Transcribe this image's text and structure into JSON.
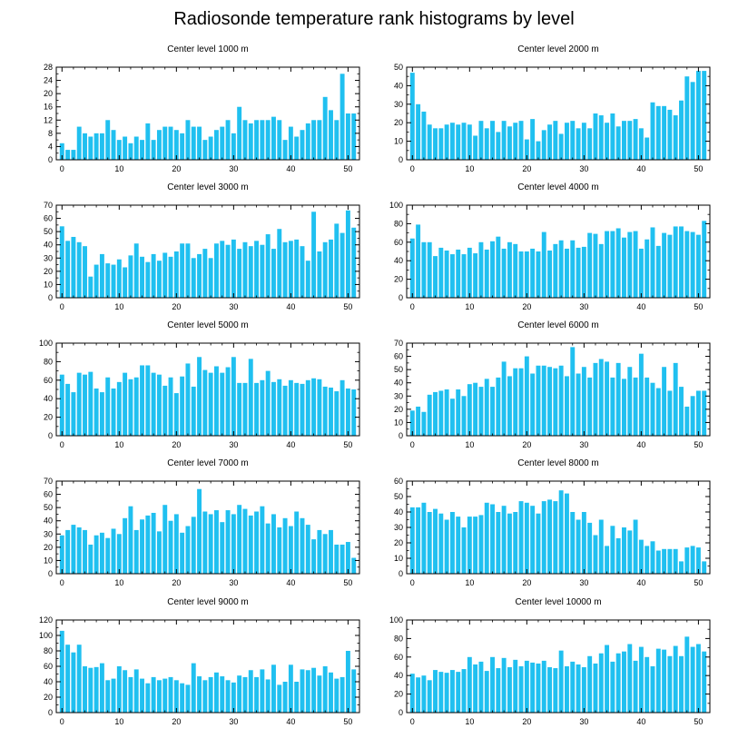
{
  "page_title": "Radiosonde temperature rank histograms by level",
  "bar_color": "#20c0f0",
  "chart_data": [
    {
      "type": "bar",
      "title": "Center level 1000 m",
      "xlim": [
        -1,
        52
      ],
      "ylim": [
        0,
        28
      ],
      "xticks": [
        0,
        10,
        20,
        30,
        40,
        50
      ],
      "yticks": [
        0,
        4,
        8,
        12,
        16,
        20,
        24,
        28
      ],
      "values": [
        5,
        3,
        3,
        10,
        8,
        7,
        8,
        8,
        12,
        9,
        6,
        7,
        5,
        7,
        6,
        11,
        6,
        9,
        10,
        10,
        9,
        8,
        12,
        10,
        10,
        6,
        7,
        9,
        10,
        12,
        8,
        16,
        12,
        11,
        12,
        12,
        12,
        13,
        12,
        6,
        10,
        7,
        9,
        11,
        12,
        12,
        19,
        15,
        12,
        26,
        14,
        14
      ]
    },
    {
      "type": "bar",
      "title": "Center level 2000 m",
      "xlim": [
        -1,
        52
      ],
      "ylim": [
        0,
        50
      ],
      "xticks": [
        0,
        10,
        20,
        30,
        40,
        50
      ],
      "yticks": [
        0,
        10,
        20,
        30,
        40,
        50
      ],
      "values": [
        47,
        30,
        26,
        19,
        17,
        17,
        19,
        20,
        19,
        20,
        19,
        13,
        21,
        17,
        21,
        15,
        21,
        18,
        20,
        21,
        11,
        22,
        10,
        16,
        19,
        21,
        14,
        20,
        21,
        17,
        20,
        17,
        25,
        24,
        20,
        25,
        18,
        21,
        21,
        22,
        17,
        12,
        31,
        29,
        29,
        27,
        24,
        32,
        45,
        42,
        48,
        48
      ]
    },
    {
      "type": "bar",
      "title": "Center level 3000 m",
      "xlim": [
        -1,
        52
      ],
      "ylim": [
        0,
        70
      ],
      "xticks": [
        0,
        10,
        20,
        30,
        40,
        50
      ],
      "yticks": [
        0,
        10,
        20,
        30,
        40,
        50,
        60,
        70
      ],
      "values": [
        54,
        43,
        46,
        42,
        39,
        16,
        25,
        33,
        26,
        25,
        29,
        23,
        32,
        41,
        31,
        27,
        33,
        28,
        34,
        31,
        35,
        41,
        41,
        30,
        33,
        37,
        30,
        41,
        43,
        40,
        44,
        37,
        42,
        39,
        43,
        40,
        48,
        37,
        52,
        42,
        43,
        44,
        39,
        28,
        65,
        35,
        42,
        44,
        56,
        49,
        66,
        53
      ]
    },
    {
      "type": "bar",
      "title": "Center level 4000 m",
      "xlim": [
        -1,
        52
      ],
      "ylim": [
        0,
        100
      ],
      "xticks": [
        0,
        10,
        20,
        30,
        40,
        50
      ],
      "yticks": [
        0,
        20,
        40,
        60,
        80,
        100
      ],
      "values": [
        64,
        79,
        60,
        60,
        45,
        54,
        51,
        47,
        52,
        47,
        54,
        48,
        60,
        52,
        61,
        66,
        53,
        60,
        58,
        50,
        50,
        53,
        50,
        71,
        51,
        58,
        62,
        53,
        62,
        54,
        55,
        70,
        69,
        58,
        72,
        72,
        75,
        65,
        71,
        72,
        53,
        63,
        76,
        56,
        70,
        68,
        77,
        77,
        72,
        71,
        68,
        83
      ]
    },
    {
      "type": "bar",
      "title": "Center level 5000 m",
      "xlim": [
        -1,
        52
      ],
      "ylim": [
        0,
        100
      ],
      "xticks": [
        0,
        10,
        20,
        30,
        40,
        50
      ],
      "yticks": [
        0,
        20,
        40,
        60,
        80,
        100
      ],
      "values": [
        66,
        56,
        47,
        68,
        66,
        69,
        51,
        47,
        63,
        51,
        58,
        68,
        61,
        63,
        76,
        76,
        68,
        66,
        54,
        63,
        46,
        64,
        78,
        53,
        85,
        71,
        68,
        75,
        68,
        74,
        85,
        57,
        57,
        83,
        57,
        60,
        70,
        58,
        61,
        54,
        60,
        57,
        56,
        60,
        62,
        61,
        53,
        52,
        48,
        60,
        51,
        50
      ]
    },
    {
      "type": "bar",
      "title": "Center level 6000 m",
      "xlim": [
        -1,
        52
      ],
      "ylim": [
        0,
        70
      ],
      "xticks": [
        0,
        10,
        20,
        30,
        40,
        50
      ],
      "yticks": [
        0,
        10,
        20,
        30,
        40,
        50,
        60,
        70
      ],
      "values": [
        19,
        22,
        18,
        31,
        33,
        34,
        35,
        28,
        35,
        30,
        39,
        40,
        37,
        43,
        37,
        44,
        56,
        45,
        51,
        51,
        60,
        47,
        53,
        53,
        52,
        51,
        53,
        45,
        67,
        47,
        52,
        44,
        55,
        58,
        56,
        44,
        55,
        43,
        52,
        44,
        62,
        44,
        40,
        36,
        52,
        34,
        55,
        37,
        22,
        30,
        34,
        34
      ]
    },
    {
      "type": "bar",
      "title": "Center level 7000 m",
      "xlim": [
        -1,
        52
      ],
      "ylim": [
        0,
        70
      ],
      "xticks": [
        0,
        10,
        20,
        30,
        40,
        50
      ],
      "yticks": [
        0,
        10,
        20,
        30,
        40,
        50,
        60,
        70
      ],
      "values": [
        29,
        33,
        37,
        35,
        33,
        22,
        29,
        31,
        27,
        34,
        30,
        42,
        51,
        33,
        41,
        44,
        46,
        32,
        52,
        40,
        45,
        31,
        36,
        43,
        64,
        47,
        45,
        48,
        39,
        48,
        45,
        52,
        49,
        44,
        47,
        51,
        38,
        45,
        35,
        42,
        36,
        47,
        42,
        37,
        26,
        33,
        30,
        33,
        22,
        22,
        24,
        12
      ]
    },
    {
      "type": "bar",
      "title": "Center level 8000 m",
      "xlim": [
        -1,
        52
      ],
      "ylim": [
        0,
        60
      ],
      "xticks": [
        0,
        10,
        20,
        30,
        40,
        50
      ],
      "yticks": [
        0,
        10,
        20,
        30,
        40,
        50,
        60
      ],
      "values": [
        43,
        43,
        46,
        40,
        42,
        39,
        35,
        40,
        37,
        30,
        37,
        37,
        38,
        46,
        45,
        40,
        44,
        39,
        40,
        47,
        46,
        44,
        39,
        47,
        48,
        47,
        54,
        52,
        40,
        35,
        40,
        33,
        25,
        35,
        18,
        31,
        23,
        30,
        28,
        35,
        22,
        18,
        21,
        15,
        16,
        16,
        16,
        8,
        17,
        18,
        17,
        8
      ]
    },
    {
      "type": "bar",
      "title": "Center level 9000 m",
      "xlim": [
        -1,
        52
      ],
      "ylim": [
        0,
        120
      ],
      "xticks": [
        0,
        10,
        20,
        30,
        40,
        50
      ],
      "yticks": [
        0,
        20,
        40,
        60,
        80,
        100,
        120
      ],
      "values": [
        106,
        88,
        78,
        88,
        60,
        58,
        59,
        64,
        42,
        44,
        60,
        55,
        46,
        56,
        44,
        38,
        46,
        42,
        44,
        46,
        42,
        38,
        36,
        64,
        47,
        42,
        46,
        52,
        47,
        42,
        39,
        48,
        46,
        55,
        46,
        56,
        43,
        62,
        36,
        40,
        62,
        40,
        56,
        55,
        58,
        48,
        60,
        52,
        44,
        46,
        80,
        56
      ]
    },
    {
      "type": "bar",
      "title": "Center level 10000 m",
      "xlim": [
        -1,
        52
      ],
      "ylim": [
        0,
        100
      ],
      "xticks": [
        0,
        10,
        20,
        30,
        40,
        50
      ],
      "yticks": [
        0,
        20,
        40,
        60,
        80,
        100
      ],
      "values": [
        42,
        38,
        40,
        35,
        46,
        44,
        43,
        46,
        44,
        47,
        60,
        52,
        55,
        45,
        60,
        48,
        59,
        49,
        57,
        50,
        56,
        54,
        53,
        56,
        49,
        48,
        67,
        50,
        55,
        52,
        49,
        61,
        53,
        64,
        73,
        55,
        64,
        66,
        74,
        56,
        71,
        60,
        50,
        69,
        68,
        61,
        72,
        61,
        82,
        71,
        74,
        66
      ]
    }
  ]
}
